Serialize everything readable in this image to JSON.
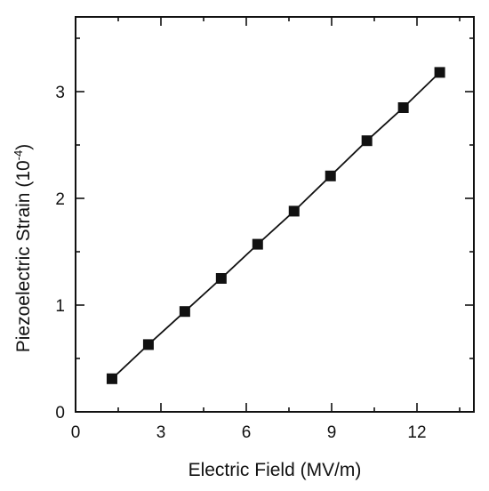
{
  "chart_data": {
    "type": "scatter",
    "title": "",
    "xlabel": "Electric Field (MV/m)",
    "ylabel_base": "Piezoelectric Strain (10",
    "ylabel_exponent": "-4",
    "ylabel_close": ")",
    "xlim": [
      0,
      14
    ],
    "ylim": [
      0,
      3.7
    ],
    "xticks": [
      0,
      3,
      6,
      9,
      12
    ],
    "yticks": [
      0,
      1,
      2,
      3
    ],
    "grid": false,
    "legend": "none",
    "series": [
      {
        "marker": "square",
        "line": true,
        "x": [
          1.28,
          2.56,
          3.84,
          5.12,
          6.4,
          7.68,
          8.96,
          10.24,
          11.52,
          12.8
        ],
        "y": [
          0.31,
          0.63,
          0.94,
          1.25,
          1.57,
          1.88,
          2.21,
          2.54,
          2.85,
          3.18
        ]
      }
    ],
    "colors": {
      "axes": "#111111",
      "markers": "#111111",
      "line": "#111111"
    }
  }
}
